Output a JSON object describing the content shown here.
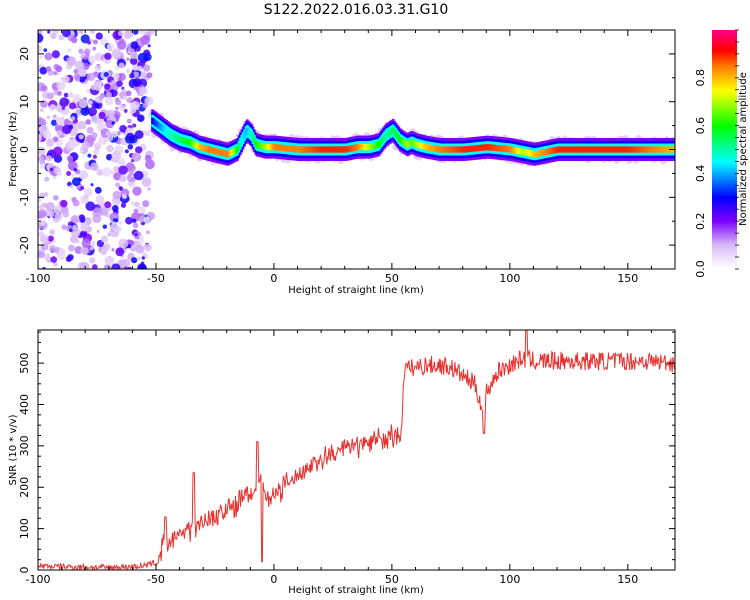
{
  "figure_title": "S122.2022.016.03.31.G10",
  "chart_data": [
    {
      "type": "heatmap",
      "title": "",
      "xlabel": "Height of straight line (km)",
      "ylabel": "Frequency (Hz)",
      "xlim": [
        -100,
        170
      ],
      "ylim": [
        -25,
        25
      ],
      "xticks": [
        -100,
        -50,
        0,
        50,
        100,
        150
      ],
      "yticks": [
        -20,
        -10,
        0,
        10,
        20
      ],
      "colormap": [
        "#ffffff",
        "#e8d4f5",
        "#7f00ff",
        "#0000ff",
        "#00ffff",
        "#00ff00",
        "#ffff00",
        "#ff8000",
        "#ff0000",
        "#ff0080"
      ],
      "colorbar": {
        "label": "Normalized spectral amplitude",
        "range": [
          0,
          1
        ],
        "ticks": [
          "0.0",
          "0.2",
          "0.4",
          "0.6",
          "0.8"
        ]
      },
      "noise_region_x": [
        -100,
        -52
      ],
      "ridge": {
        "x": [
          -52,
          -48,
          -44,
          -40,
          -36,
          -32,
          -28,
          -24,
          -20,
          -16,
          -14,
          -12,
          -10,
          -8,
          -4,
          0,
          10,
          20,
          30,
          35,
          40,
          44,
          47,
          50,
          53,
          56,
          58,
          60,
          64,
          70,
          80,
          90,
          100,
          105,
          110,
          120,
          130,
          140,
          150,
          160,
          170
        ],
        "freq": [
          6,
          4.5,
          3,
          2,
          1.5,
          0.5,
          0,
          -0.5,
          -1,
          0,
          2,
          4,
          3,
          1,
          0.5,
          0.5,
          0,
          0,
          0,
          0.5,
          0.5,
          1,
          3,
          4,
          2,
          1,
          1.5,
          1,
          0.5,
          0,
          0,
          0.5,
          0,
          -0.5,
          -1,
          0,
          0,
          0,
          0,
          0,
          0
        ],
        "amplitude": [
          0.3,
          0.4,
          0.5,
          0.55,
          0.6,
          0.8,
          0.85,
          0.85,
          0.85,
          0.6,
          0.45,
          0.4,
          0.5,
          0.6,
          0.7,
          0.85,
          0.85,
          0.9,
          0.9,
          0.85,
          0.7,
          0.6,
          0.5,
          0.55,
          0.6,
          0.7,
          0.65,
          0.7,
          0.8,
          0.85,
          0.9,
          0.9,
          0.85,
          0.7,
          0.8,
          0.9,
          0.9,
          0.9,
          0.9,
          0.85,
          0.8
        ]
      }
    },
    {
      "type": "line",
      "title": "",
      "xlabel": "Height of straight line (km)",
      "ylabel": "SNR (10 * v/v)",
      "xlim": [
        -100,
        170
      ],
      "ylim": [
        0,
        580
      ],
      "xticks": [
        -100,
        -50,
        0,
        50,
        100,
        150
      ],
      "yticks": [
        0,
        100,
        200,
        300,
        400,
        500
      ],
      "grid": false,
      "series_color": "#e8312f",
      "x": [
        -100,
        -90,
        -80,
        -70,
        -60,
        -55,
        -50,
        -48,
        -46,
        -45,
        -42,
        -40,
        -36,
        -34,
        -30,
        -25,
        -20,
        -15,
        -10,
        -8,
        -6,
        -4,
        -2,
        0,
        5,
        10,
        15,
        20,
        25,
        30,
        35,
        40,
        45,
        50,
        54,
        55,
        56,
        60,
        65,
        70,
        75,
        80,
        85,
        88,
        89,
        90,
        95,
        100,
        105,
        110,
        120,
        130,
        140,
        150,
        160,
        170
      ],
      "y": [
        10,
        8,
        7,
        6,
        8,
        10,
        18,
        40,
        70,
        55,
        80,
        85,
        100,
        110,
        120,
        130,
        145,
        165,
        185,
        195,
        210,
        200,
        170,
        180,
        205,
        230,
        250,
        265,
        280,
        293,
        300,
        308,
        315,
        320,
        325,
        475,
        485,
        490,
        495,
        495,
        490,
        470,
        450,
        400,
        340,
        430,
        480,
        495,
        510,
        505,
        505,
        505,
        505,
        505,
        505,
        500
      ],
      "spikes": [
        {
          "x": -46,
          "y": 128
        },
        {
          "x": -34,
          "y": 235
        },
        {
          "x": -7,
          "y": 310
        },
        {
          "x": -5,
          "y": 20
        },
        {
          "x": 89,
          "y": 330
        },
        {
          "x": 107,
          "y": 580
        }
      ]
    }
  ]
}
